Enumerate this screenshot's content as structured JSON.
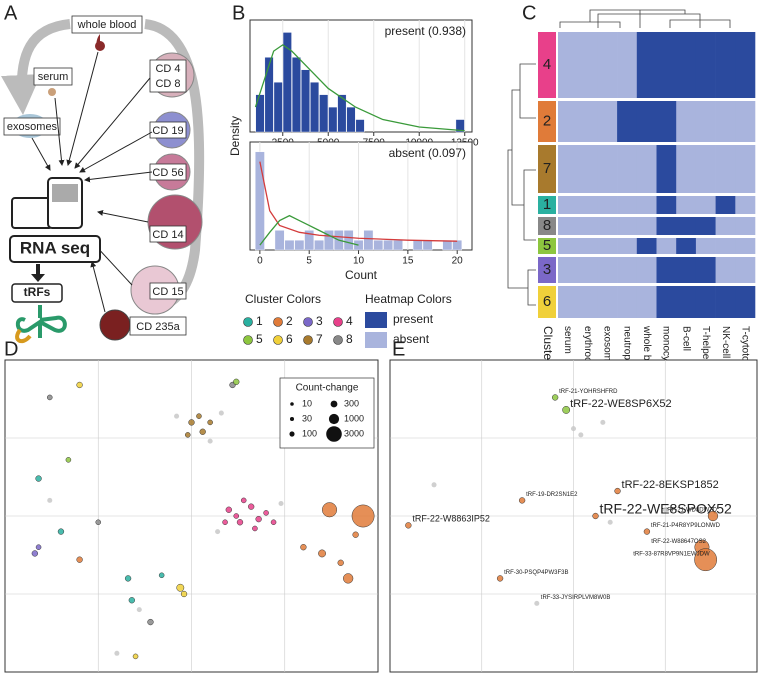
{
  "panel_labels": [
    "A",
    "B",
    "C",
    "D",
    "E"
  ],
  "panel_a": {
    "nodes": [
      {
        "label": "whole blood"
      },
      {
        "label": "serum"
      },
      {
        "label": "exosomes"
      },
      {
        "label": "CD 4"
      },
      {
        "label": "CD 8"
      },
      {
        "label": "CD 19"
      },
      {
        "label": "CD 56"
      },
      {
        "label": "CD 14"
      },
      {
        "label": "CD 15"
      },
      {
        "label": "CD 235a"
      },
      {
        "label": "RNA seq"
      },
      {
        "label": "tRFs"
      }
    ]
  },
  "chart_data": [
    {
      "type": "histogram",
      "annotation": "present (0.938)",
      "ylabel": "Density",
      "color": "#2b4a9e",
      "bins": [
        1000,
        1500,
        2000,
        2500,
        3000,
        3500,
        4000,
        4500,
        5000,
        5500,
        6000,
        6500,
        7000,
        7500,
        8000,
        8500,
        9000,
        9500,
        10000,
        10500,
        11000,
        11500,
        12000,
        12500
      ],
      "counts": [
        3,
        6,
        4,
        8,
        6,
        5,
        4,
        3,
        2,
        3,
        2,
        1,
        0,
        0,
        0,
        0,
        0,
        0,
        0,
        0,
        0,
        0,
        1
      ],
      "xlim": [
        700,
        12900
      ],
      "xticks": [
        2500,
        5000,
        7500,
        10000,
        12500
      ],
      "ylim": [
        0,
        9
      ],
      "lines": [
        {
          "color": "#3a9a3a",
          "x": [
            1000,
            2000,
            2500,
            3000,
            4000,
            5000,
            6500,
            8000,
            10000,
            12500
          ],
          "y": [
            2,
            6.5,
            7,
            6.5,
            5,
            3.5,
            2,
            1,
            0.4,
            0.1
          ]
        }
      ]
    },
    {
      "type": "histogram",
      "annotation": "absent (0.097)",
      "xlabel": "Count",
      "color": "#a9b4dd",
      "bins": [
        -0.5,
        0.5,
        1.5,
        2.5,
        3.5,
        4.5,
        5.5,
        6.5,
        7.5,
        8.5,
        9.5,
        10.5,
        11.5,
        12.5,
        13.5,
        14.5,
        15.5,
        16.5,
        17.5,
        18.5,
        19.5,
        20.5
      ],
      "counts": [
        10,
        0,
        2,
        1,
        1,
        2,
        1,
        2,
        2,
        2,
        1,
        2,
        1,
        1,
        1,
        0,
        1,
        1,
        0,
        1,
        1
      ],
      "xlim": [
        -1,
        21.5
      ],
      "xticks": [
        0,
        5,
        10,
        15,
        20
      ],
      "ylim": [
        0,
        11
      ],
      "lines": [
        {
          "color": "#d43c3c",
          "x": [
            0,
            1,
            2,
            4,
            6,
            10,
            15,
            20
          ],
          "y": [
            9,
            4,
            2.5,
            1.8,
            1.5,
            1.2,
            1,
            0.9
          ]
        },
        {
          "color": "#3a9a3a",
          "x": [
            0,
            1,
            2,
            3,
            4,
            5,
            6,
            8,
            10
          ],
          "y": [
            0.5,
            1.8,
            3,
            3.5,
            3,
            2.5,
            2,
            1,
            0.5
          ]
        }
      ]
    },
    {
      "type": "heatmap",
      "ylabel": "Cluster",
      "rows": [
        "4",
        "2",
        "7",
        "1",
        "8",
        "5",
        "3",
        "6"
      ],
      "columns": [
        "serum",
        "erythrocyte",
        "exosome",
        "neutrophil",
        "whole blood",
        "monocyte",
        "B-cell",
        "T-helper",
        "NK-cell",
        "T-cytotoxic"
      ],
      "cells": [
        [
          0,
          0,
          0,
          0,
          1,
          1,
          1,
          1,
          1,
          1
        ],
        [
          0,
          0,
          0,
          1,
          1,
          1,
          0,
          0,
          0,
          0
        ],
        [
          0,
          0,
          0,
          0,
          0,
          1,
          0,
          0,
          0,
          0
        ],
        [
          0,
          0,
          0,
          0,
          0,
          1,
          0,
          0,
          1,
          0
        ],
        [
          0,
          0,
          0,
          0,
          0,
          1,
          1,
          1,
          0,
          0
        ],
        [
          0,
          0,
          0,
          0,
          1,
          0,
          1,
          0,
          0,
          0
        ],
        [
          0,
          0,
          0,
          0,
          0,
          1,
          1,
          1,
          0,
          0
        ],
        [
          0,
          0,
          0,
          0,
          0,
          1,
          1,
          1,
          1,
          1
        ]
      ],
      "legend_title": "Heatmap Colors",
      "legend": [
        "present",
        "absent"
      ],
      "legend_colors": [
        "#2b4a9e",
        "#a9b4dd"
      ],
      "cluster_legend_title": "Cluster Colors",
      "cluster_legend": [
        "1",
        "2",
        "3",
        "4",
        "5",
        "6",
        "7",
        "8"
      ],
      "cluster_colors": [
        "#2ab0a0",
        "#e07b39",
        "#7b68c8",
        "#e8408a",
        "#8dc63f",
        "#f0d03a",
        "#a87a2d",
        "#888888"
      ]
    },
    {
      "type": "scatter",
      "xlim": [
        0,
        100
      ],
      "ylim": [
        0,
        100
      ],
      "grid": true,
      "size_legend_title": "Count-change",
      "size_legend": [
        10,
        30,
        100,
        300,
        1000,
        3000
      ],
      "x": [
        60,
        63,
        66,
        68,
        62,
        70,
        64,
        67,
        59,
        72,
        50,
        53,
        55,
        49,
        52,
        46,
        58,
        55,
        74,
        57,
        36,
        12,
        30,
        87,
        96,
        85,
        90,
        94,
        80,
        92,
        8,
        9,
        15,
        17,
        20,
        33,
        47,
        48,
        34,
        20,
        61,
        62,
        39,
        35,
        12,
        25,
        9,
        42
      ],
      "y": [
        52,
        48,
        53,
        49,
        50,
        51,
        55,
        46,
        48,
        48,
        80,
        77,
        80,
        76,
        82,
        82,
        83,
        74,
        54,
        45,
        20,
        55,
        6,
        52,
        50,
        38,
        35,
        44,
        40,
        30,
        38,
        62,
        45,
        68,
        36,
        30,
        27,
        25,
        23,
        92,
        92,
        93,
        16,
        5,
        88,
        48,
        40,
        31
      ],
      "cluster": [
        4,
        4,
        4,
        4,
        4,
        4,
        4,
        4,
        4,
        4,
        7,
        7,
        7,
        7,
        7,
        null,
        null,
        null,
        null,
        null,
        null,
        null,
        null,
        2,
        2,
        2,
        2,
        2,
        2,
        2,
        3,
        1,
        1,
        5,
        2,
        1,
        6,
        6,
        1,
        6,
        8,
        5,
        8,
        6,
        8,
        8,
        3,
        1
      ],
      "size": [
        30,
        30,
        30,
        30,
        10,
        10,
        10,
        10,
        10,
        10,
        30,
        30,
        10,
        10,
        10,
        10,
        10,
        10,
        10,
        10,
        10,
        10,
        10,
        1000,
        3000,
        100,
        30,
        30,
        30,
        300,
        30,
        30,
        30,
        10,
        30,
        30,
        100,
        30,
        30,
        30,
        30,
        30,
        30,
        10,
        10,
        10,
        10,
        10
      ]
    },
    {
      "type": "scatter",
      "xlim": [
        0,
        100
      ],
      "ylim": [
        0,
        100
      ],
      "grid": true,
      "x": [
        48,
        62,
        56,
        5,
        85,
        86,
        45,
        36,
        88,
        30,
        70,
        40,
        50,
        52,
        58,
        12,
        60,
        75
      ],
      "y": [
        84,
        58,
        50,
        47,
        40,
        36,
        88,
        55,
        50,
        30,
        45,
        22,
        78,
        76,
        80,
        60,
        48,
        52
      ],
      "cluster": [
        5,
        2,
        2,
        2,
        2,
        2,
        5,
        2,
        2,
        2,
        2,
        null,
        null,
        null,
        null,
        null,
        null,
        null
      ],
      "size": [
        100,
        30,
        30,
        30,
        1000,
        3000,
        30,
        30,
        300,
        30,
        30,
        10,
        10,
        10,
        10,
        10,
        10,
        10
      ],
      "labels": [
        "tRF-22-WE8SP6X52",
        "tRF-22-8EKSP1852",
        "tRF-22-WE8SPOX52",
        "tRF-22-W8863IP52",
        "tRF-22-W88647OS2",
        "tRF-33-87R8VP9N1EWJDW",
        "tRF-21-YOHRSHFRD",
        "tRF-19-DR2SN1E2",
        "tRF-21-WD8DW7D",
        "tRF-30-PSQP4PW3F3B",
        "tRF-21-P4R8YP9LONWD",
        "tRF-33-JYSIRPLVM8W0B",
        null,
        null,
        null,
        null,
        null,
        null
      ]
    }
  ]
}
